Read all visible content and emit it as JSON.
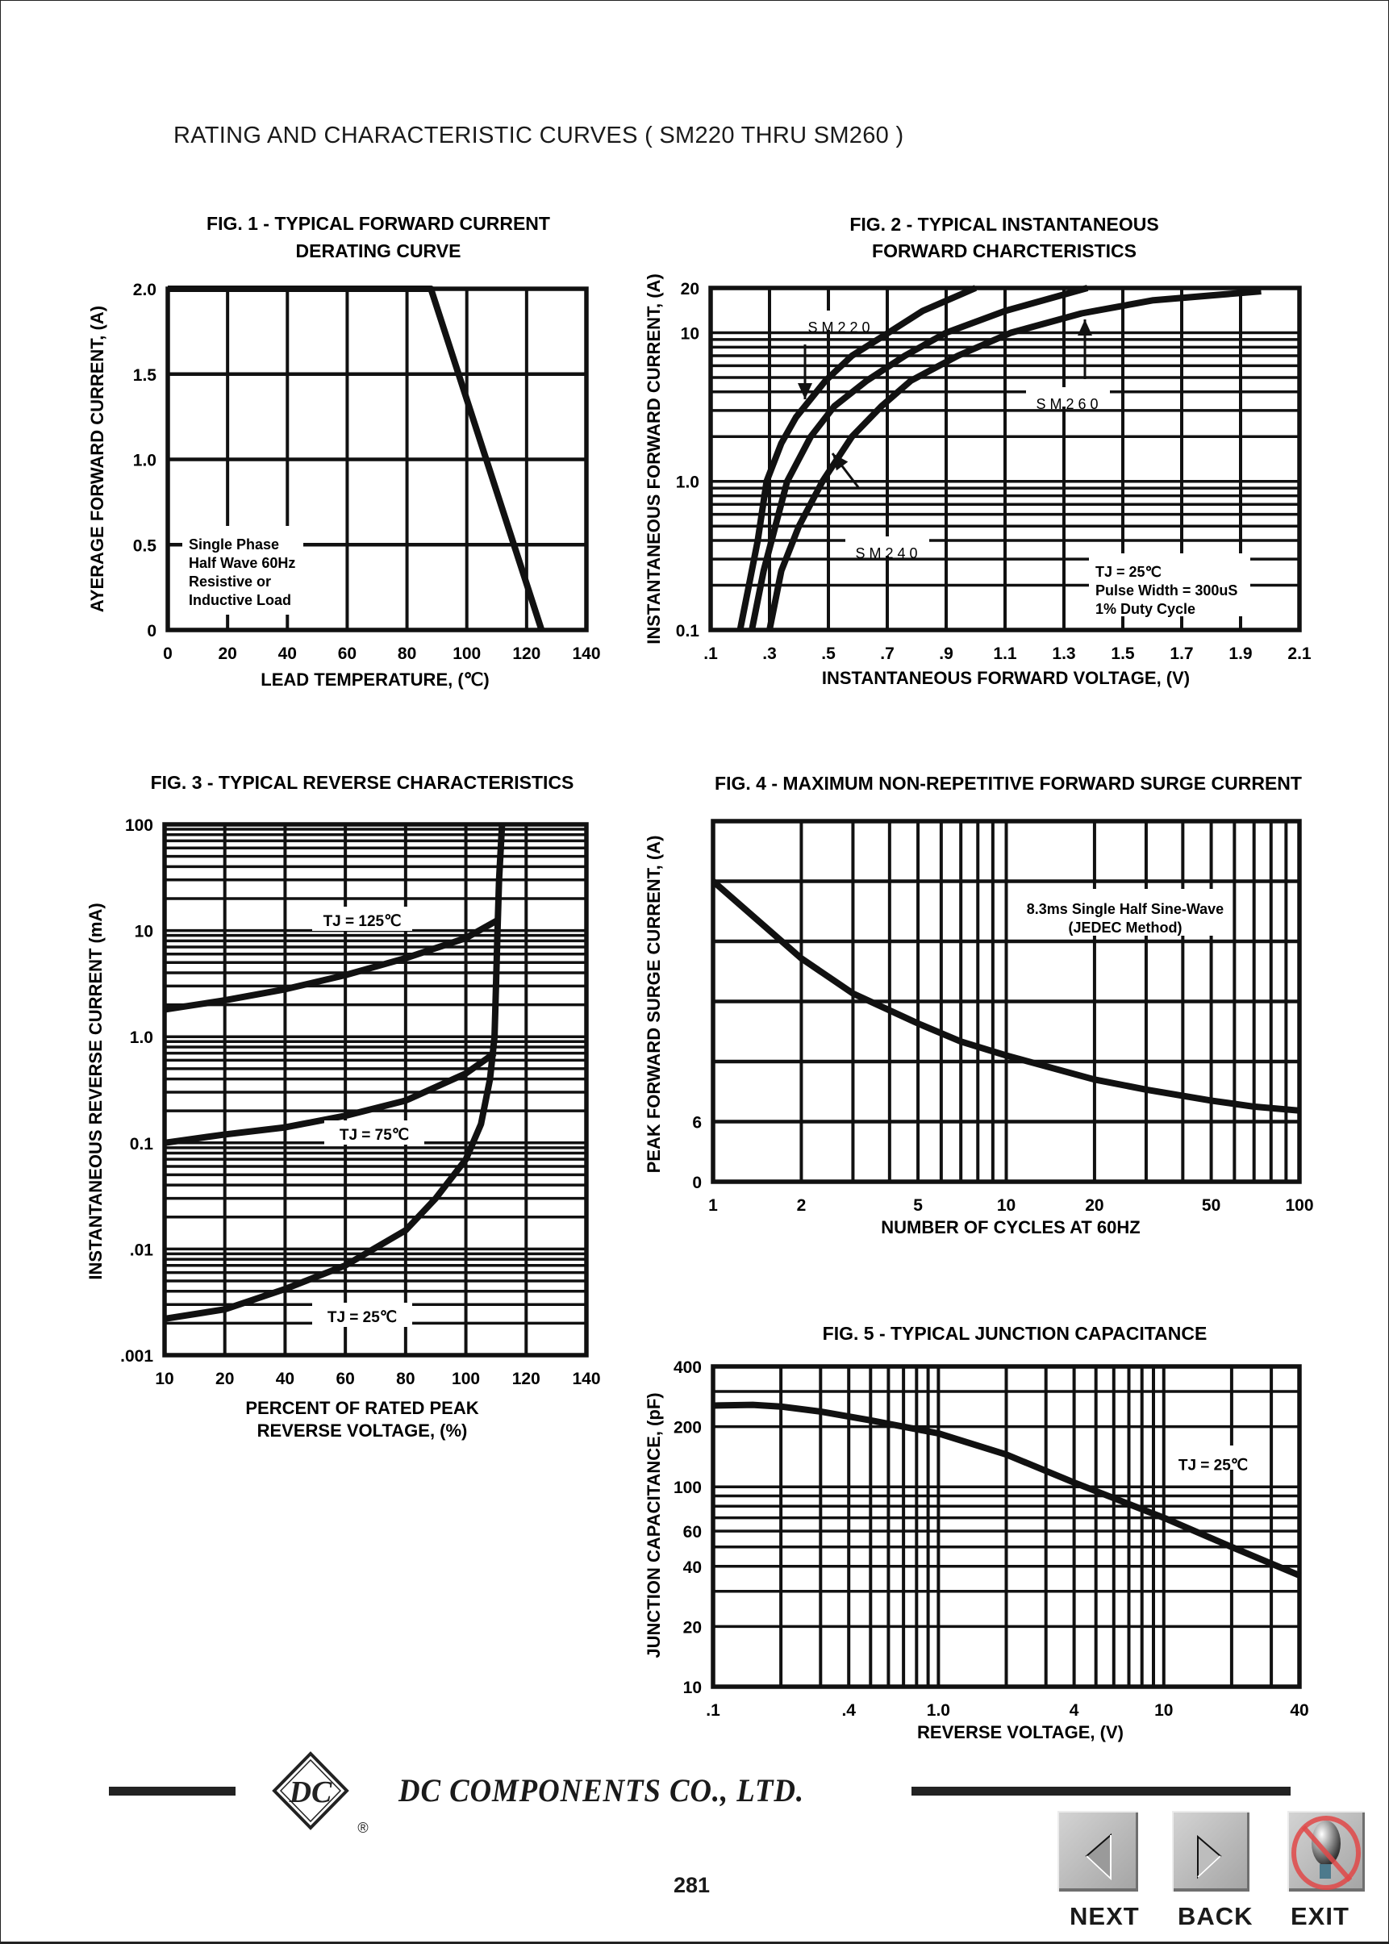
{
  "page": {
    "title": "RATING AND CHARACTERISTIC CURVES ( SM220 THRU SM260 )",
    "company": "DC COMPONENTS CO., LTD.",
    "logo_text": "DC",
    "logo_mark": "®",
    "page_number": "281"
  },
  "nav": {
    "next_label": "NEXT",
    "back_label": "BACK",
    "exit_label": "EXIT"
  },
  "chart_data": [
    {
      "type": "line",
      "title": [
        "FIG. 1 - TYPICAL FORWARD CURRENT",
        "DERATING CURVE"
      ],
      "xlabel": [
        "LEAD TEMPERATURE, (℃)"
      ],
      "ylabel": "AYERAGE FORWARD CURRENT, (A)",
      "x_scale": "linear",
      "y_scale": "linear",
      "xlim": [
        0,
        140
      ],
      "ylim": [
        0,
        2.0
      ],
      "x_ticks": {
        "values": [
          0,
          20,
          40,
          60,
          80,
          100,
          120,
          140
        ],
        "labels": [
          "0",
          "20",
          "40",
          "60",
          "80",
          "100",
          "120",
          "140"
        ]
      },
      "y_ticks": {
        "values": [
          0,
          0.5,
          1.0,
          1.5,
          2.0
        ],
        "labels": [
          "0",
          "0.5",
          "1.0",
          "1.5",
          "2.0"
        ]
      },
      "x_grid": [
        20,
        40,
        60,
        80,
        100,
        120
      ],
      "y_grid": [
        0.5,
        1.0,
        1.5
      ],
      "grid": true,
      "series": [
        {
          "points": [
            [
              0,
              2.0
            ],
            [
              88,
              2.0
            ],
            [
              125,
              0
            ]
          ]
        }
      ],
      "annotations": [
        {
          "lines": [
            "Single Phase",
            "Half Wave 60Hz",
            "Resistive or",
            "Inductive Load"
          ]
        }
      ]
    },
    {
      "type": "line",
      "title": [
        "FIG. 2 - TYPICAL INSTANTANEOUS",
        "FORWARD CHARCTERISTICS"
      ],
      "xlabel": [
        "INSTANTANEOUS FORWARD VOLTAGE, (V)"
      ],
      "ylabel": "INSTANTANEOUS FORWARD CURRENT, (A)",
      "x_scale": "linear",
      "y_scale": "log",
      "xlim": [
        0.1,
        2.1
      ],
      "ylim": [
        0.1,
        20
      ],
      "x_ticks": {
        "values": [
          0.1,
          0.3,
          0.5,
          0.7,
          0.9,
          1.1,
          1.3,
          1.5,
          1.7,
          1.9,
          2.1
        ],
        "labels": [
          ".1",
          ".3",
          ".5",
          ".7",
          ".9",
          "1.1",
          "1.3",
          "1.5",
          "1.7",
          "1.9",
          "2.1"
        ]
      },
      "y_ticks": {
        "values": [
          0.1,
          1.0,
          10,
          20
        ],
        "labels": [
          "0.1",
          "1.0",
          "10",
          "20"
        ]
      },
      "x_grid": [
        0.3,
        0.5,
        0.7,
        0.9,
        1.1,
        1.3,
        1.5,
        1.7,
        1.9
      ],
      "y_grid": [
        0.2,
        0.3,
        0.4,
        0.5,
        0.6,
        0.7,
        0.8,
        0.9,
        1,
        2,
        3,
        4,
        5,
        6,
        7,
        8,
        9,
        10
      ],
      "grid": true,
      "series": [
        {
          "name": "SM220",
          "points": [
            [
              0.2,
              0.1
            ],
            [
              0.23,
              0.2
            ],
            [
              0.26,
              0.4
            ],
            [
              0.29,
              1.0
            ],
            [
              0.34,
              1.8
            ],
            [
              0.39,
              2.7
            ],
            [
              0.49,
              4.75
            ],
            [
              0.58,
              7
            ],
            [
              0.69,
              9.6
            ],
            [
              0.82,
              14
            ],
            [
              1.0,
              20
            ]
          ]
        },
        {
          "name": "SM240",
          "points": [
            [
              0.24,
              0.1
            ],
            [
              0.28,
              0.25
            ],
            [
              0.32,
              0.5
            ],
            [
              0.36,
              1.0
            ],
            [
              0.44,
              2
            ],
            [
              0.52,
              3.2
            ],
            [
              0.63,
              4.75
            ],
            [
              0.76,
              7
            ],
            [
              0.9,
              10
            ],
            [
              1.1,
              14
            ],
            [
              1.38,
              20
            ]
          ]
        },
        {
          "name": "SM260",
          "points": [
            [
              0.3,
              0.1
            ],
            [
              0.34,
              0.25
            ],
            [
              0.4,
              0.5
            ],
            [
              0.48,
              1.0
            ],
            [
              0.58,
              2
            ],
            [
              0.68,
              3.2
            ],
            [
              0.78,
              4.75
            ],
            [
              0.94,
              7
            ],
            [
              1.12,
              10
            ],
            [
              1.36,
              13.5
            ],
            [
              1.6,
              16.5
            ],
            [
              1.97,
              19
            ]
          ]
        }
      ],
      "annotations": [
        {
          "lines": [
            "S M 2 2 0"
          ]
        },
        {
          "lines": [
            "S M 2 6 0"
          ]
        },
        {
          "lines": [
            "S M 2 4 0"
          ]
        },
        {
          "lines": [
            "TJ = 25℃",
            "Pulse Width = 300uS",
            "1% Duty Cycle"
          ]
        }
      ]
    },
    {
      "type": "line",
      "title": [
        "FIG. 3 - TYPICAL REVERSE CHARACTERISTICS"
      ],
      "xlabel": [
        "PERCENT OF RATED PEAK",
        "REVERSE VOLTAGE, (%)"
      ],
      "ylabel": "INSTANTANEOUS REVERSE CURRENT (mA)",
      "x_scale": "piecewise",
      "y_scale": "log",
      "xlim": [
        10,
        140
      ],
      "ylim": [
        0.001,
        100
      ],
      "x_ticks": {
        "values": [
          10,
          20,
          40,
          60,
          80,
          100,
          120,
          140
        ],
        "labels": [
          "10",
          "20",
          "40",
          "60",
          "80",
          "100",
          "120",
          "140"
        ]
      },
      "y_ticks": {
        "values": [
          0.001,
          0.01,
          0.1,
          1.0,
          10,
          100
        ],
        "labels": [
          ".001",
          ".01",
          "0.1",
          "1.0",
          "10",
          "100"
        ]
      },
      "x_grid": [
        20,
        40,
        60,
        80,
        100,
        120
      ],
      "y_grid": [
        0.002,
        0.003,
        0.004,
        0.005,
        0.006,
        0.007,
        0.008,
        0.009,
        0.01,
        0.02,
        0.03,
        0.04,
        0.05,
        0.06,
        0.07,
        0.08,
        0.09,
        0.1,
        0.2,
        0.3,
        0.4,
        0.5,
        0.6,
        0.7,
        0.8,
        0.9,
        1,
        2,
        3,
        4,
        5,
        6,
        7,
        8,
        9,
        10,
        20,
        30,
        40,
        50,
        60,
        70,
        80,
        90
      ],
      "grid": true,
      "series": [
        {
          "name": "TJ = 125℃",
          "points": [
            [
              10,
              1.8
            ],
            [
              20,
              2.2
            ],
            [
              40,
              2.8
            ],
            [
              60,
              3.8
            ],
            [
              80,
              5.5
            ],
            [
              100,
              8.5
            ],
            [
              110.5,
              12.5
            ]
          ]
        },
        {
          "name": "TJ = 75℃",
          "points": [
            [
              10,
              0.1
            ],
            [
              20,
              0.12
            ],
            [
              40,
              0.14
            ],
            [
              60,
              0.18
            ],
            [
              80,
              0.25
            ],
            [
              100,
              0.45
            ],
            [
              109.5,
              0.7
            ]
          ]
        },
        {
          "name": "TJ = 25℃",
          "points": [
            [
              10,
              0.0022
            ],
            [
              20,
              0.0027
            ],
            [
              40,
              0.0042
            ],
            [
              60,
              0.007
            ],
            [
              80,
              0.015
            ],
            [
              90,
              0.03
            ],
            [
              100,
              0.07
            ],
            [
              105,
              0.15
            ],
            [
              108,
              0.4
            ],
            [
              109.5,
              1
            ],
            [
              110,
              3
            ],
            [
              110.5,
              10
            ],
            [
              111,
              30
            ],
            [
              112,
              100
            ]
          ]
        }
      ],
      "annotations": []
    },
    {
      "type": "line",
      "title": [
        "FIG. 4 - MAXIMUM NON-REPETITIVE FORWARD SURGE CURRENT"
      ],
      "xlabel": [
        "NUMBER OF CYCLES AT 60HZ"
      ],
      "ylabel": "PEAK FORWARD SURGE CURRENT, (A)",
      "x_scale": "log",
      "y_scale": "linear",
      "xlim": [
        1,
        100
      ],
      "ylim": [
        0,
        36
      ],
      "x_ticks": {
        "values": [
          1,
          2,
          5,
          10,
          20,
          50,
          100
        ],
        "labels": [
          "1",
          "2",
          "5",
          "10",
          "20",
          "50",
          "100"
        ]
      },
      "y_ticks": {
        "values": [
          0,
          6
        ],
        "labels": [
          "0",
          "6"
        ]
      },
      "x_grid": [
        2,
        3,
        4,
        5,
        6,
        7,
        8,
        9,
        10,
        20,
        30,
        40,
        50,
        60,
        70,
        80,
        90
      ],
      "y_grid": [
        6,
        12,
        18,
        24,
        30
      ],
      "grid": true,
      "series": [
        {
          "points": [
            [
              1,
              30
            ],
            [
              1.5,
              25.5
            ],
            [
              2,
              22.3
            ],
            [
              3,
              18.8
            ],
            [
              5,
              15.8
            ],
            [
              7,
              14
            ],
            [
              10,
              12.6
            ],
            [
              20,
              10.2
            ],
            [
              30,
              9.2
            ],
            [
              50,
              8.1
            ],
            [
              70,
              7.5
            ],
            [
              100,
              7.1
            ]
          ]
        }
      ],
      "annotations": [
        {
          "lines": [
            "8.3ms Single Half Sine-Wave",
            "(JEDEC Method)"
          ]
        }
      ]
    },
    {
      "type": "line",
      "title": [
        "FIG. 5 - TYPICAL JUNCTION CAPACITANCE"
      ],
      "xlabel": [
        "REVERSE VOLTAGE, (V)"
      ],
      "ylabel": "JUNCTION CAPACITANCE, (pF)",
      "x_scale": "log",
      "y_scale": "log",
      "xlim": [
        0.1,
        40
      ],
      "ylim": [
        10,
        400
      ],
      "x_ticks": {
        "values": [
          0.1,
          0.4,
          1.0,
          4,
          10,
          40
        ],
        "labels": [
          ".1",
          ".4",
          "1.0",
          "4",
          "10",
          "40"
        ]
      },
      "y_ticks": {
        "values": [
          10,
          20,
          40,
          60,
          100,
          200,
          400
        ],
        "labels": [
          "10",
          "20",
          "40",
          "60",
          "100",
          "200",
          "400"
        ]
      },
      "x_grid": [
        0.2,
        0.3,
        0.4,
        0.5,
        0.6,
        0.7,
        0.8,
        0.9,
        1,
        2,
        3,
        4,
        5,
        6,
        7,
        8,
        9,
        10,
        20,
        30
      ],
      "y_grid": [
        20,
        30,
        40,
        50,
        60,
        70,
        80,
        90,
        100,
        200,
        300
      ],
      "grid": true,
      "series": [
        {
          "points": [
            [
              0.1,
              255
            ],
            [
              0.15,
              257
            ],
            [
              0.2,
              252
            ],
            [
              0.3,
              238
            ],
            [
              0.5,
              215
            ],
            [
              1,
              185
            ],
            [
              2,
              145
            ],
            [
              4,
              105
            ],
            [
              7,
              82
            ],
            [
              10,
              70
            ],
            [
              20,
              50
            ],
            [
              40,
              36
            ]
          ]
        }
      ],
      "annotations": [
        {
          "lines": [
            "TJ = 25℃"
          ]
        }
      ]
    }
  ]
}
